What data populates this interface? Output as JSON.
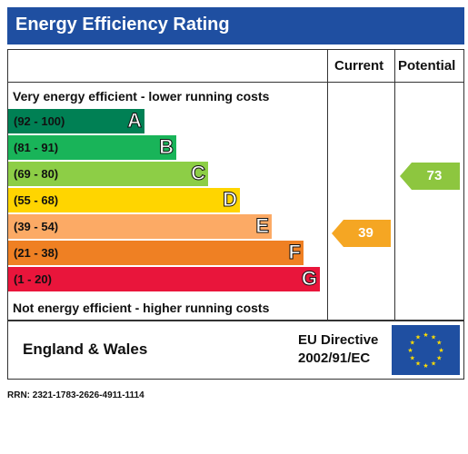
{
  "title": "Energy Efficiency Rating",
  "columns": {
    "current": "Current",
    "potential": "Potential"
  },
  "notes": {
    "top": "Very energy efficient - lower running costs",
    "bottom": "Not energy efficient - higher running costs"
  },
  "bands": [
    {
      "range": "(92 - 100)",
      "letter": "A",
      "color": "#008054"
    },
    {
      "range": "(81 - 91)",
      "letter": "B",
      "color": "#19b459"
    },
    {
      "range": "(69 - 80)",
      "letter": "C",
      "color": "#8dce46"
    },
    {
      "range": "(55 - 68)",
      "letter": "D",
      "color": "#ffd500"
    },
    {
      "range": "(39 - 54)",
      "letter": "E",
      "color": "#fcaa65"
    },
    {
      "range": "(21 - 38)",
      "letter": "F",
      "color": "#ef8023"
    },
    {
      "range": "(1 - 20)",
      "letter": "G",
      "color": "#e9153b"
    }
  ],
  "ratings": {
    "current": {
      "value": "39",
      "color": "#f5a623"
    },
    "potential": {
      "value": "73",
      "color": "#8dc63f"
    }
  },
  "footer": {
    "region": "England & Wales",
    "directive_line1": "EU Directive",
    "directive_line2": "2002/91/EC",
    "flag": {
      "icon": "eu-flag-icon",
      "color": "#1f4fa1",
      "star_color": "#ffdd00"
    }
  },
  "rrn": "RRN: 2321-1783-2626-4911-1114"
}
